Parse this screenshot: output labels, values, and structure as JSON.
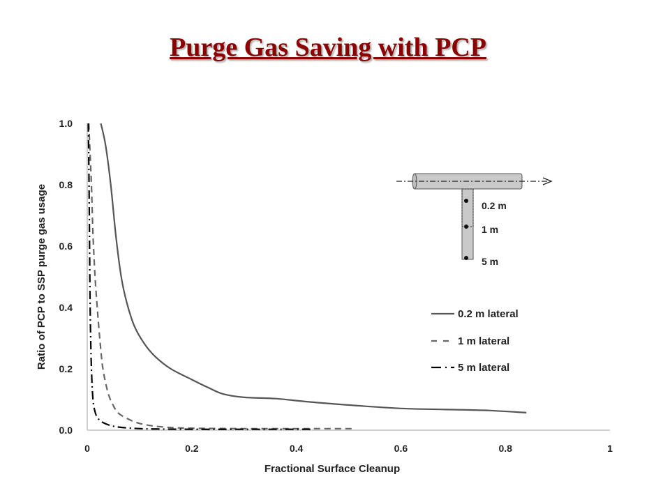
{
  "slide": {
    "title": "Purge Gas Saving with PCP"
  },
  "colors": {
    "title": "#8b0000",
    "series_solid": "#555555",
    "series_dashed": "#666666",
    "series_dashdot": "#000000"
  },
  "chart_data": {
    "type": "line",
    "title": "",
    "xlabel": "Fractional Surface Cleanup",
    "ylabel": "Ratio of PCP to SSP purge gas usage",
    "xlim": [
      0,
      1
    ],
    "ylim": [
      0,
      1.0
    ],
    "xticks": [
      "0",
      "0.2",
      "0.4",
      "0.6",
      "0.8",
      "1"
    ],
    "yticks": [
      "0.0",
      "0.2",
      "0.4",
      "0.6",
      "0.8",
      "1.0"
    ],
    "grid": false,
    "legend_position": "right",
    "series": [
      {
        "name": "0.2 m lateral",
        "style": "solid",
        "x": [
          0.026,
          0.035,
          0.045,
          0.055,
          0.065,
          0.075,
          0.09,
          0.11,
          0.13,
          0.16,
          0.2,
          0.23,
          0.26,
          0.3,
          0.36,
          0.42,
          0.5,
          0.6,
          0.7,
          0.77,
          0.84
        ],
        "y": [
          1.0,
          0.93,
          0.8,
          0.63,
          0.5,
          0.42,
          0.34,
          0.28,
          0.24,
          0.2,
          0.165,
          0.14,
          0.118,
          0.107,
          0.103,
          0.093,
          0.082,
          0.071,
          0.067,
          0.064,
          0.057
        ]
      },
      {
        "name": "1 m lateral",
        "style": "dashed",
        "x": [
          0.003,
          0.005,
          0.008,
          0.011,
          0.015,
          0.02,
          0.025,
          0.03,
          0.04,
          0.05,
          0.06,
          0.08,
          0.1,
          0.13,
          0.17,
          0.22,
          0.3,
          0.4,
          0.51
        ],
        "y": [
          1.0,
          0.92,
          0.8,
          0.64,
          0.5,
          0.38,
          0.28,
          0.2,
          0.12,
          0.08,
          0.055,
          0.035,
          0.022,
          0.013,
          0.008,
          0.006,
          0.005,
          0.005,
          0.005
        ]
      },
      {
        "name": "5 m lateral",
        "style": "dashdot",
        "x": [
          0.002,
          0.003,
          0.004,
          0.005,
          0.006,
          0.008,
          0.011,
          0.015,
          0.02,
          0.03,
          0.05,
          0.08,
          0.12,
          0.2,
          0.3,
          0.35,
          0.4,
          0.43
        ],
        "y": [
          1.0,
          0.88,
          0.7,
          0.5,
          0.35,
          0.2,
          0.1,
          0.06,
          0.04,
          0.025,
          0.013,
          0.007,
          0.004,
          0.003,
          0.003,
          0.003,
          0.003,
          0.003
        ]
      }
    ],
    "inset": {
      "labels": [
        "0.2 m",
        "1 m",
        "5 m"
      ]
    }
  }
}
